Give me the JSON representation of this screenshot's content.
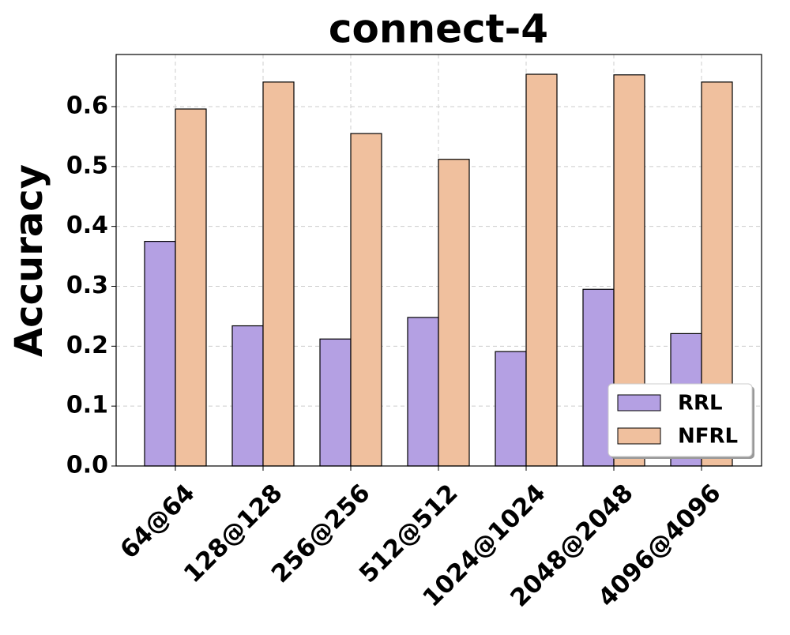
{
  "chart_data": {
    "type": "bar",
    "title": "connect-4",
    "y_label": "Accuracy",
    "categories": [
      "64@64",
      "128@128",
      "256@256",
      "512@512",
      "1024@1024",
      "2048@2048",
      "4096@4096"
    ],
    "series": [
      {
        "name": "RRL",
        "color": "#b4a0e3",
        "values": [
          0.375,
          0.234,
          0.212,
          0.248,
          0.191,
          0.295,
          0.221
        ]
      },
      {
        "name": "NFRL",
        "color": "#f0c09e",
        "values": [
          0.596,
          0.641,
          0.555,
          0.512,
          0.654,
          0.653,
          0.641
        ]
      }
    ],
    "ylim": [
      0,
      0.687
    ],
    "yticks": [
      {
        "value": 0,
        "label": "0.0"
      },
      0.1,
      0.2,
      0.3,
      0.4,
      0.5,
      0.6
    ],
    "grid": true,
    "legend": "lower right"
  }
}
